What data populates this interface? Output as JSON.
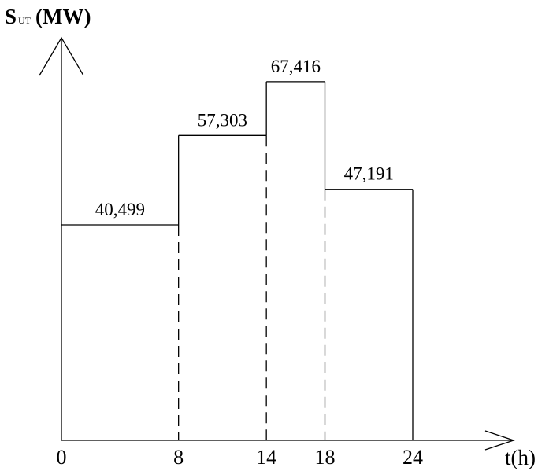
{
  "chart_data": {
    "type": "bar",
    "title": "",
    "ylabel": {
      "main": "S",
      "sub": "UT",
      "unit": "(MW)"
    },
    "xlabel": "t(h)",
    "x_ticks": [
      "0",
      "8",
      "14",
      "18",
      "24"
    ],
    "segments": [
      {
        "start": 0,
        "end": 8,
        "value": 40.499,
        "label": "40,499"
      },
      {
        "start": 8,
        "end": 14,
        "value": 57.303,
        "label": "57,303"
      },
      {
        "start": 14,
        "end": 18,
        "value": 67.416,
        "label": "67,416"
      },
      {
        "start": 18,
        "end": 24,
        "value": 47.191,
        "label": "47,191"
      }
    ],
    "xlim": [
      0,
      24
    ],
    "grid": false
  }
}
